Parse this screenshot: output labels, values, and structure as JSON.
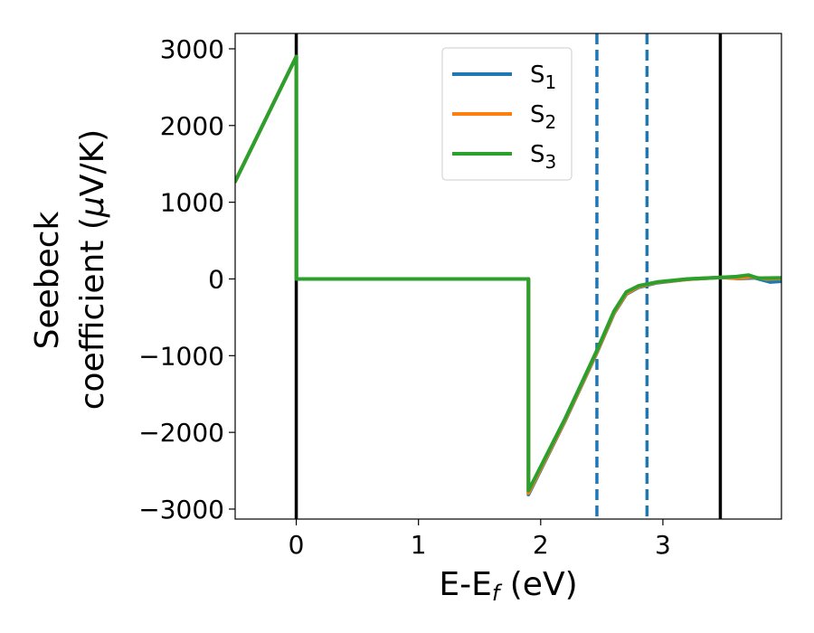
{
  "chart_data": {
    "type": "line",
    "xlabel": "E-E",
    "xlabel_sub": "f",
    "xlabel_unit": " (eV)",
    "ylabel_line1": "Seebeck",
    "ylabel_line2": "coefficient  (",
    "ylabel_mu": "μ",
    "ylabel_unit": "V/K)",
    "xlim": [
      -0.5,
      3.97
    ],
    "ylim": [
      -3130,
      3200
    ],
    "xticks": [
      0,
      1,
      2,
      3
    ],
    "xtick_labels": [
      "0",
      "1",
      "2",
      "3"
    ],
    "yticks": [
      3000,
      2000,
      1000,
      0,
      -1000,
      -2000,
      -3000
    ],
    "ytick_labels": [
      "3000",
      "2000",
      "1000",
      "0",
      "−1000",
      "−2000",
      "−3000"
    ],
    "grid": false,
    "legend_position": "top-center",
    "series": [
      {
        "name": "S",
        "sub": "1",
        "color": "#1f77b4",
        "points": [
          [
            -0.5,
            1270
          ],
          [
            0.0,
            2900
          ],
          [
            0.001,
            0
          ],
          [
            1.9,
            0
          ],
          [
            1.9,
            -2810
          ],
          [
            2.2,
            -1850
          ],
          [
            2.46,
            -960
          ],
          [
            2.6,
            -450
          ],
          [
            2.7,
            -200
          ],
          [
            2.8,
            -110
          ],
          [
            2.95,
            -50
          ],
          [
            3.2,
            -5
          ],
          [
            3.48,
            20
          ],
          [
            3.62,
            5
          ],
          [
            3.75,
            15
          ],
          [
            3.88,
            -40
          ],
          [
            3.97,
            -30
          ]
        ]
      },
      {
        "name": "S",
        "sub": "2",
        "color": "#ff7f0e",
        "points": [
          [
            -0.5,
            1270
          ],
          [
            0.0,
            2900
          ],
          [
            0.001,
            0
          ],
          [
            1.9,
            0
          ],
          [
            1.9,
            -2790
          ],
          [
            2.2,
            -1840
          ],
          [
            2.46,
            -950
          ],
          [
            2.6,
            -440
          ],
          [
            2.7,
            -190
          ],
          [
            2.8,
            -100
          ],
          [
            2.95,
            -45
          ],
          [
            3.2,
            -5
          ],
          [
            3.48,
            20
          ],
          [
            3.62,
            10
          ],
          [
            3.72,
            25
          ],
          [
            3.85,
            0
          ],
          [
            3.97,
            5
          ]
        ]
      },
      {
        "name": "S",
        "sub": "3",
        "color": "#2ca02c",
        "points": [
          [
            -0.5,
            1270
          ],
          [
            0.0,
            2900
          ],
          [
            0.001,
            0
          ],
          [
            1.9,
            0
          ],
          [
            1.9,
            -2760
          ],
          [
            2.2,
            -1820
          ],
          [
            2.46,
            -930
          ],
          [
            2.6,
            -420
          ],
          [
            2.7,
            -170
          ],
          [
            2.8,
            -90
          ],
          [
            2.95,
            -40
          ],
          [
            3.2,
            0
          ],
          [
            3.48,
            20
          ],
          [
            3.6,
            30
          ],
          [
            3.7,
            50
          ],
          [
            3.78,
            10
          ],
          [
            3.97,
            15
          ]
        ]
      }
    ],
    "reference_lines": [
      {
        "x": 0.0,
        "color": "#000000",
        "style": "solid"
      },
      {
        "x": 2.46,
        "color": "#1f77b4",
        "style": "dashed"
      },
      {
        "x": 2.87,
        "color": "#1f77b4",
        "style": "dashed"
      },
      {
        "x": 3.47,
        "color": "#000000",
        "style": "solid"
      }
    ]
  }
}
